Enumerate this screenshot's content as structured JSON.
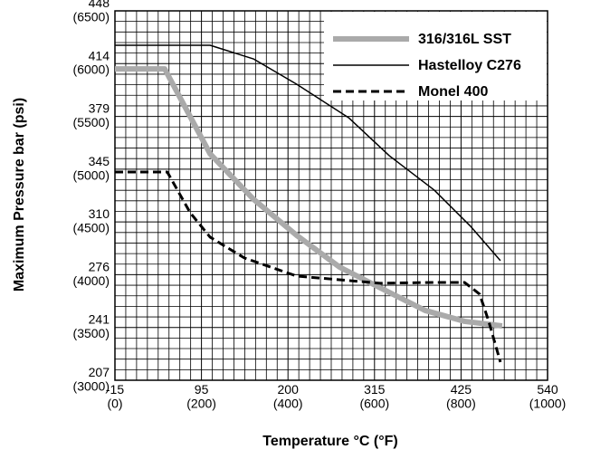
{
  "chart_data": {
    "type": "line",
    "xlabel": "Temperature °C (°F)",
    "ylabel": "Maximum Pressure bar (psi)",
    "xlim": [
      0,
      1000
    ],
    "xticks": [
      {
        "value": 0,
        "label": "-15\n(0)"
      },
      {
        "value": 200,
        "label": "95\n(200)"
      },
      {
        "value": 400,
        "label": "200\n(400)"
      },
      {
        "value": 600,
        "label": "315\n(600)"
      },
      {
        "value": 800,
        "label": "425\n(800)"
      },
      {
        "value": 1000,
        "label": "540\n(1000)"
      }
    ],
    "ylim": [
      3000,
      6500
    ],
    "yticks": [
      {
        "value": 3000,
        "label": "207\n(3000)"
      },
      {
        "value": 3500,
        "label": "241\n(3500)"
      },
      {
        "value": 4000,
        "label": "276\n(4000)"
      },
      {
        "value": 4500,
        "label": "310\n(4500)"
      },
      {
        "value": 5000,
        "label": "345\n(5000)"
      },
      {
        "value": 5500,
        "label": "379\n(5500)"
      },
      {
        "value": 6000,
        "label": "414\n(6000)"
      },
      {
        "value": 6500,
        "label": "448\n(6500)"
      }
    ],
    "grid": true,
    "legend": "upper right",
    "series": [
      {
        "name": "316/316L SST",
        "color": "#aaaaaa",
        "style": "thick",
        "x": [
          0,
          115,
          220,
          320,
          420,
          519,
          613,
          717,
          808,
          895
        ],
        "values": [
          5950,
          5950,
          5145,
          4716,
          4373,
          4073,
          3876,
          3661,
          3558,
          3515
        ]
      },
      {
        "name": "Hastelloy C276",
        "color": "#000000",
        "style": "thin",
        "x": [
          0,
          220,
          320,
          420,
          540,
          634,
          738,
          822,
          891
        ],
        "values": [
          6174,
          6174,
          6045,
          5805,
          5488,
          5128,
          4802,
          4459,
          4133
        ]
      },
      {
        "name": "Monel 400",
        "color": "#000000",
        "style": "dashed",
        "x": [
          0,
          121,
          174,
          220,
          299,
          420,
          613,
          738,
          808,
          843,
          864,
          891
        ],
        "values": [
          4973,
          4973,
          4587,
          4356,
          4159,
          3987,
          3919,
          3927,
          3927,
          3816,
          3558,
          3172
        ]
      }
    ]
  }
}
